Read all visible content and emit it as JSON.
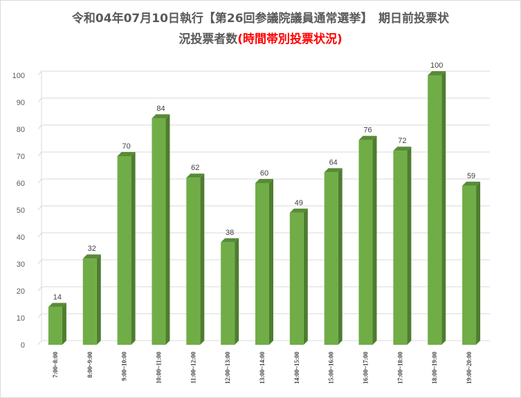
{
  "chart_data": {
    "type": "bar",
    "title_line1": "令和04年07月10日執行【第26回参議院議員通常選挙】　期日前投票状",
    "title_line2_black": "況投票者数",
    "title_line2_red": "(時間帯別投票状況)",
    "categories": [
      "7:00~8:00",
      "8:00~9:00",
      "9:00~10:00",
      "10:00~11:00",
      "11:00~12:00",
      "12:00~13:00",
      "13:00~14:00",
      "14:00~15:00",
      "15:00~16:00",
      "16:00~17:00",
      "17:00~18:00",
      "18:00~19:00",
      "19:00~20:00"
    ],
    "values": [
      14,
      32,
      70,
      84,
      62,
      38,
      60,
      49,
      64,
      76,
      72,
      100,
      59
    ],
    "ylim": [
      0,
      100
    ],
    "yticks": [
      0,
      10,
      20,
      30,
      40,
      50,
      60,
      70,
      80,
      90,
      100
    ],
    "grid": true,
    "legend": "none",
    "bar_color": "#70ad47",
    "bar_side_color": "#4e7d2f",
    "bar_top_color": "#588b38"
  }
}
